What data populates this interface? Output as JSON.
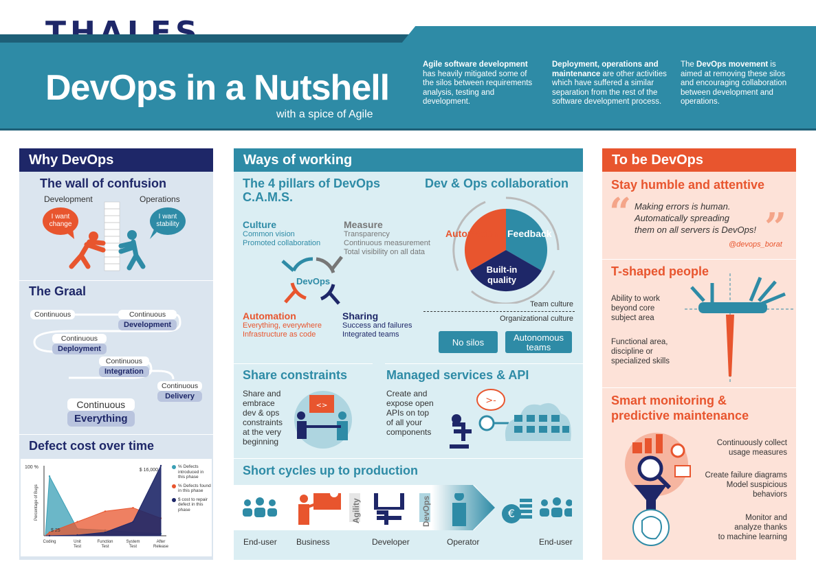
{
  "brand": "THALES",
  "header": {
    "title": "DevOps in a Nutshell",
    "subtitle": "with a spice of Agile",
    "intro1_bold": "Agile software development",
    "intro1_rest": "has heavily mitigated some of the silos between requirements analysis, testing and development.",
    "intro2_bold": "Deployment, operations and maintenance",
    "intro2_rest": "are other activities which have suffered a similar separation from the rest of the software development process.",
    "intro3_a": "The",
    "intro3_bold": "DevOps movement",
    "intro3_rest": "is aimed at removing these silos and encouraging collaboration between development and operations."
  },
  "why": {
    "header": "Why DevOps",
    "wall_title": "The wall of confusion",
    "dev_label": "Development",
    "ops_label": "Operations",
    "bubble_dev": "I want change",
    "bubble_ops": "I want stability",
    "graal_title": "The Graal",
    "graal_steps": [
      {
        "top": "Continuous",
        "bottom": ""
      },
      {
        "top": "Continuous",
        "bottom": "Development"
      },
      {
        "top": "Continuous",
        "bottom": "Deployment"
      },
      {
        "top": "Continuous",
        "bottom": "Integration"
      },
      {
        "top": "Continuous",
        "bottom": "Delivery"
      },
      {
        "top": "Continuous",
        "bottom": "Everything"
      }
    ],
    "defect_title": "Defect cost over time"
  },
  "chart_data": {
    "type": "area",
    "title": "Defect cost over time",
    "ylabel": "Percentage of Bugs",
    "y_top_label": "100 %",
    "annotation_high": "$ 16,000",
    "annotation_low": "$ 25",
    "categories": [
      "Coding",
      "Unit Test",
      "Function Test",
      "System Test",
      "After Release"
    ],
    "series": [
      {
        "name": "% Defects introduced in this phase",
        "color": "#3a9fb5",
        "values": [
          85,
          10,
          8,
          5,
          3
        ]
      },
      {
        "name": "% Defects found in this phase",
        "color": "#e8552e",
        "values": [
          5,
          20,
          35,
          40,
          25
        ]
      },
      {
        "name": "$ cost to repair defect in this phase",
        "color": "#1e2768",
        "values": [
          0.15,
          1,
          5,
          20,
          100
        ]
      }
    ]
  },
  "ways": {
    "header": "Ways of working",
    "pillars_title1": "The 4 pillars of DevOps",
    "pillars_title2": "C.A.M.S.",
    "culture": "Culture",
    "culture_items": [
      "Common vision",
      "Promoted collaboration"
    ],
    "measure": "Measure",
    "measure_items": [
      "Transparency",
      "Continuous measurement",
      "Total visibility on all data"
    ],
    "center": "DevOps",
    "automation": "Automation",
    "automation_items": [
      "Everything, everywhere",
      "Infrastructure as code"
    ],
    "sharing": "Sharing",
    "sharing_items": [
      "Success and failures",
      "Integrated teams"
    ],
    "collab_title": "Dev & Ops collaboration",
    "pie_automation": "Automation",
    "pie_feedback": "Feedback",
    "pie_quality1": "Built-in",
    "pie_quality2": "quality",
    "team_culture": "Team culture",
    "org_culture": "Organizational culture",
    "btn_nosilos": "No silos",
    "btn_auto1": "Autonomous",
    "btn_auto2": "teams",
    "share_title": "Share constraints",
    "share_text": [
      "Share and",
      "embrace",
      "dev & ops",
      "constraints",
      "at the very",
      "beginning"
    ],
    "managed_title": "Managed services & API",
    "managed_text": [
      "Create and",
      "expose open",
      "APIs on top",
      "of all your",
      "components"
    ],
    "cycles_title": "Short cycles up to production",
    "cycles": [
      "End-user",
      "Business",
      "Developer",
      "Operator",
      "End-user"
    ],
    "agility": "Agility",
    "devops_vert": "DevOps"
  },
  "tobe": {
    "header": "To be DevOps",
    "humble_title": "Stay humble and attentive",
    "quote": [
      "Making errors is human.",
      "Automatically spreading",
      "them on all servers is DevOps!"
    ],
    "quote_author": "@devops_borat",
    "t_title": "T-shaped people",
    "t_text1": [
      "Ability to work",
      "beyond core",
      "subject area"
    ],
    "t_text2": [
      "Functional area,",
      "discipline or",
      "specialized skills"
    ],
    "smart_title1": "Smart monitoring &",
    "smart_title2": "predictive maintenance",
    "smart1": [
      "Continuously collect",
      "usage measures"
    ],
    "smart2": [
      "Create failure diagrams",
      "Model suspicious",
      "behaviors"
    ],
    "smart3": [
      "Monitor and",
      "analyze thanks",
      "to machine learning"
    ]
  }
}
